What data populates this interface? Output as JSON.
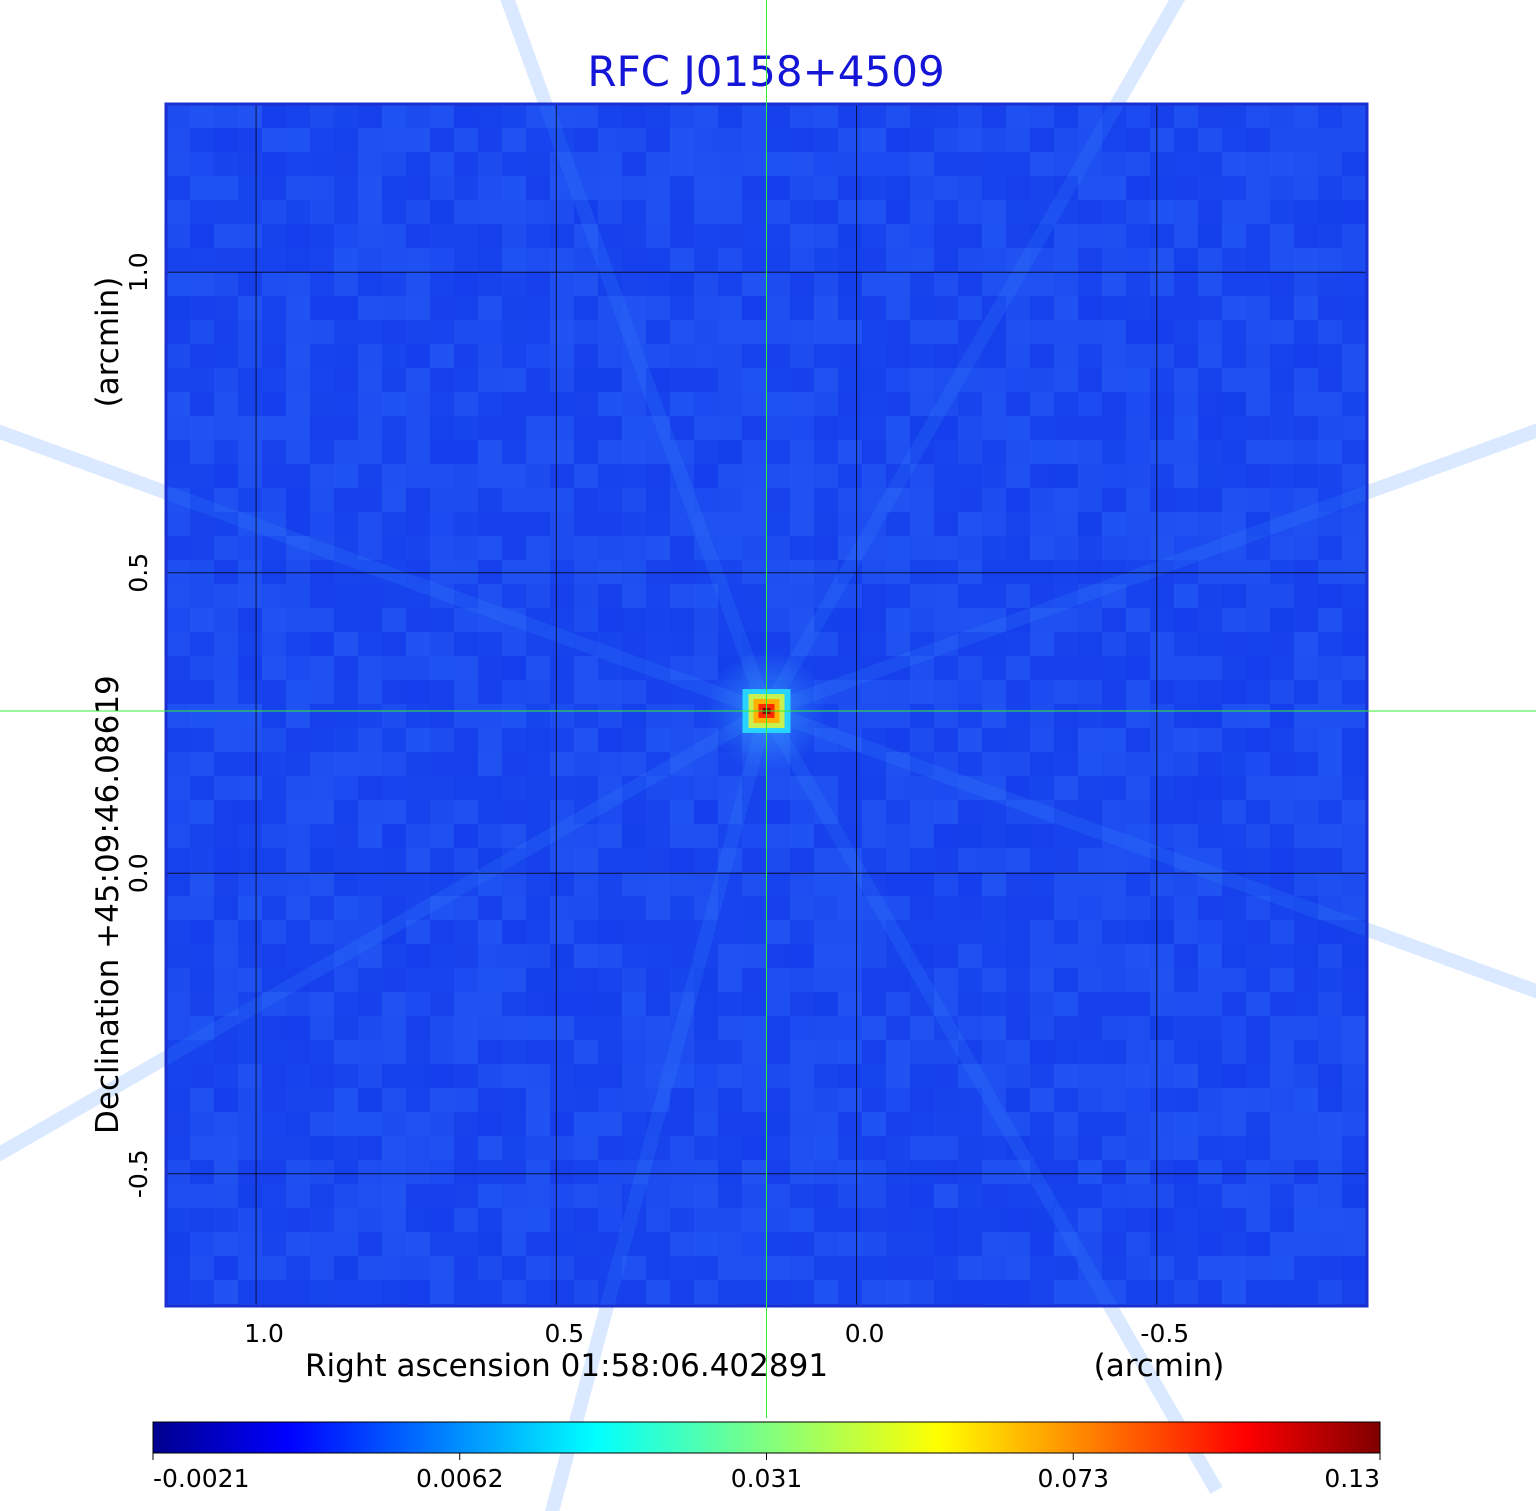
{
  "chart_data": {
    "type": "heatmap",
    "title": "RFC J0158+4509",
    "xlabel": "Right ascension  01:58:06.402891",
    "xunit": "(arcmin)",
    "ylabel": "Declination  +45:09:46.08619",
    "yunit": "(arcmin)",
    "x_axis": {
      "range": [
        1.15,
        -0.85
      ],
      "reversed": true,
      "ticks": [
        1.0,
        0.5,
        0.0,
        -0.5
      ],
      "tick_labels": [
        "1.0",
        "0.5",
        "0.0",
        "-0.5"
      ]
    },
    "y_axis": {
      "range": [
        -0.72,
        1.28
      ],
      "ticks": [
        1.0,
        0.5,
        0.0,
        -0.5
      ],
      "tick_labels": [
        "1.0",
        "0.5",
        "0.0",
        "-0.5"
      ]
    },
    "grid": true,
    "source_peak": {
      "x": 0.15,
      "y": 0.27,
      "value": 0.13
    },
    "crosshair": {
      "x": 0.15,
      "y": 0.27,
      "color": "#33ee33"
    },
    "colorbar": {
      "colormap": "jet",
      "placement": "bottom",
      "scale": "nonlinear",
      "ticks": [
        -0.0021,
        0.0062,
        0.031,
        0.073,
        0.13
      ],
      "tick_labels": [
        "-0.0021",
        "0.0062",
        "0.031",
        "0.073",
        "0.13"
      ]
    },
    "colors": {
      "background_map": "#1a48f0",
      "title": "#1515d8",
      "grid": "#000000",
      "frame": "#1a2fd0"
    }
  }
}
